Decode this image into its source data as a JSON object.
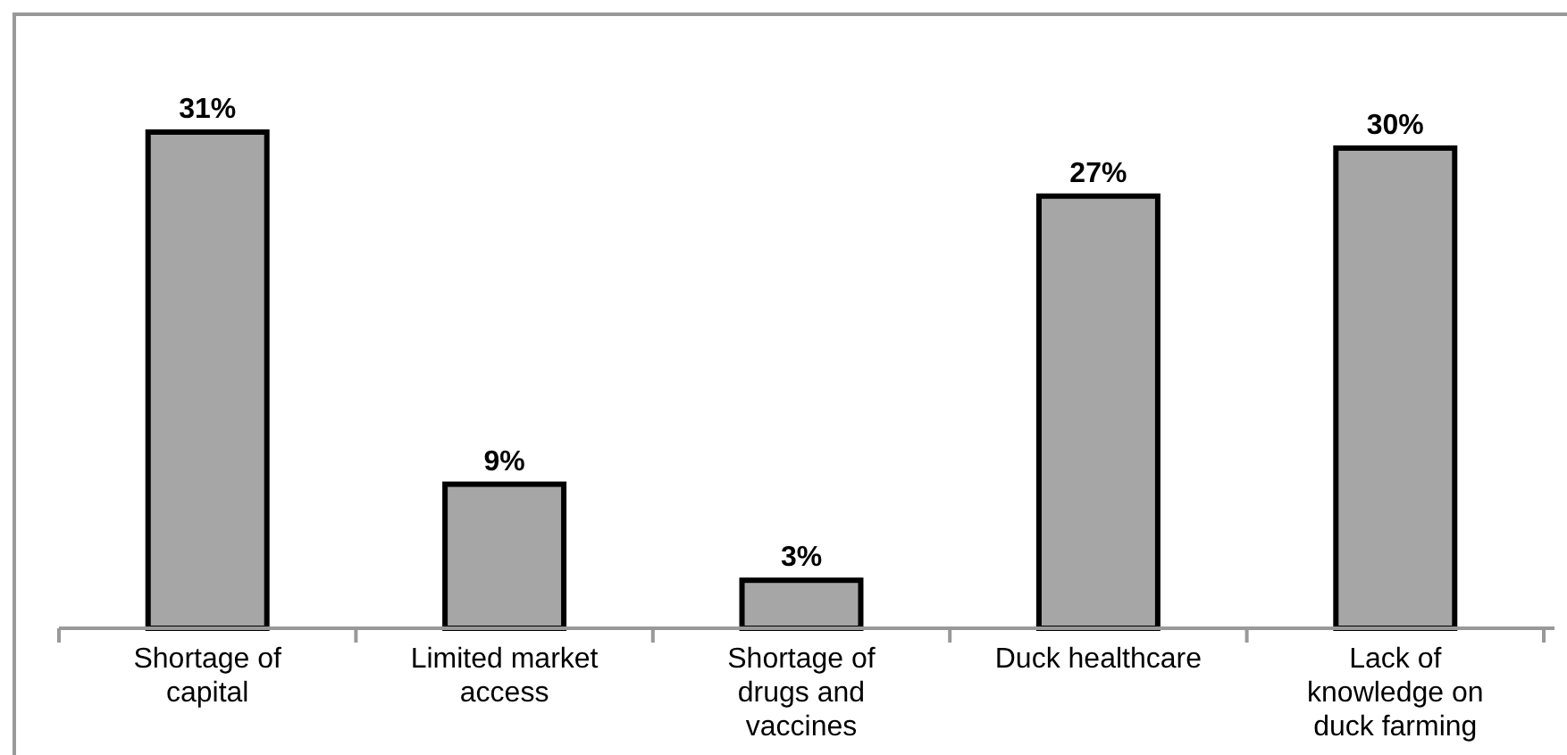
{
  "chart_data": {
    "type": "bar",
    "categories": [
      "Shortage of capital",
      "Limited market access",
      "Shortage of drugs and vaccines",
      "Duck healthcare",
      "Lack of knowledge on duck farming"
    ],
    "values": [
      31,
      9,
      3,
      27,
      30
    ],
    "value_labels": [
      "31%",
      "9%",
      "3%",
      "27%",
      "30%"
    ],
    "color": "#a6a6a6",
    "tick_labels": "x"
  }
}
